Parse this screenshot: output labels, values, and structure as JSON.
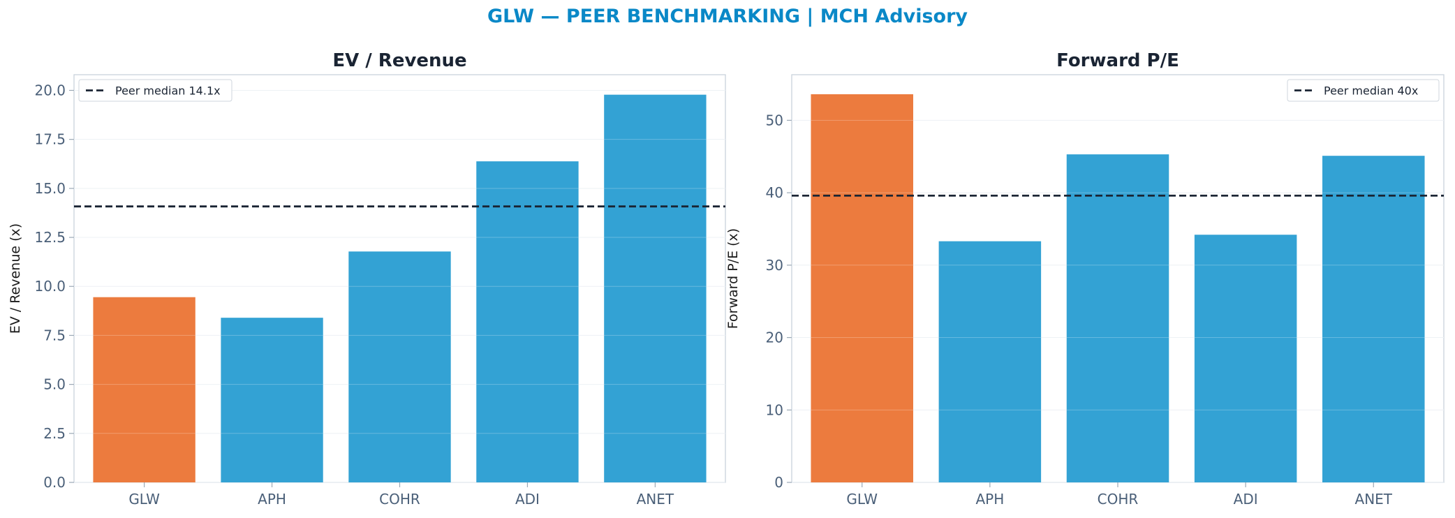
{
  "suptitle": "GLW — PEER BENCHMARKING | MCH Advisory",
  "colors": {
    "highlight": "#ec7b3e",
    "peer": "#33a2d4",
    "median_line": "#1a2433",
    "title": "#1a2433",
    "tick": "#4a5f78",
    "suptitle": "#0a88c7"
  },
  "chart_data": [
    {
      "type": "bar",
      "title": "EV / Revenue",
      "ylabel": "EV / Revenue (x)",
      "categories": [
        "GLW",
        "APH",
        "COHR",
        "ADI",
        "ANET"
      ],
      "values": [
        9.45,
        8.4,
        11.78,
        16.38,
        19.78
      ],
      "highlight": "GLW",
      "ylim": [
        0,
        20.8
      ],
      "yticks": [
        0,
        2.5,
        5,
        7.5,
        10,
        12.5,
        15,
        17.5,
        20
      ],
      "ytick_labels": [
        "0.0",
        "2.5",
        "5.0",
        "7.5",
        "10.0",
        "12.5",
        "15.0",
        "17.5",
        "20.0"
      ],
      "reference_line": {
        "value": 14.08,
        "label": "Peer median 14.1x"
      },
      "legend_position": "upper-left",
      "grid": true
    },
    {
      "type": "bar",
      "title": "Forward P/E",
      "ylabel": "Forward P/E (x)",
      "categories": [
        "GLW",
        "APH",
        "COHR",
        "ADI",
        "ANET"
      ],
      "values": [
        53.6,
        33.3,
        45.3,
        34.2,
        45.1
      ],
      "highlight": "GLW",
      "ylim": [
        0,
        56.3
      ],
      "yticks": [
        0,
        10,
        20,
        30,
        40,
        50
      ],
      "ytick_labels": [
        "0",
        "10",
        "20",
        "30",
        "40",
        "50"
      ],
      "reference_line": {
        "value": 39.6,
        "label": "Peer median 40x"
      },
      "legend_position": "upper-right",
      "grid": true
    }
  ]
}
